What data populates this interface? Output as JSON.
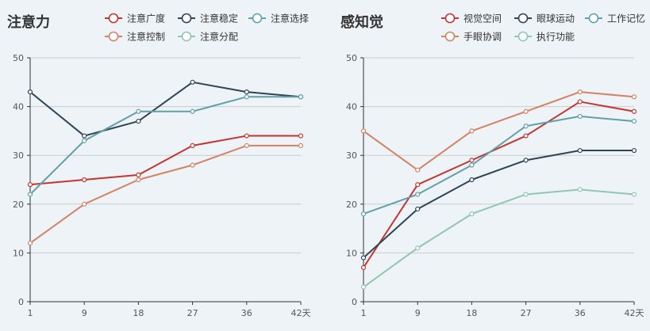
{
  "chart_data": [
    {
      "type": "line",
      "title": "注意力",
      "x_unit": "天",
      "categories": [
        "1",
        "9",
        "18",
        "27",
        "36",
        "42"
      ],
      "ylim": [
        0,
        50
      ],
      "yticks": [
        0,
        10,
        20,
        30,
        40,
        50
      ],
      "grid": true,
      "legend_position": "top-right",
      "series": [
        {
          "name": "注意广度",
          "color": "#c23531",
          "values": [
            24,
            25,
            26,
            32,
            34,
            34
          ]
        },
        {
          "name": "注意稳定",
          "color": "#2f4554",
          "values": [
            43,
            34,
            37,
            45,
            43,
            42
          ]
        },
        {
          "name": "注意选择",
          "color": "#61a0a8",
          "values": [
            22,
            33,
            39,
            39,
            42,
            42
          ]
        },
        {
          "name": "注意控制",
          "color": "#d48265",
          "values": [
            12,
            20,
            25,
            28,
            32,
            32
          ]
        },
        {
          "name": "注意分配",
          "color": "#91c7ae",
          "values": [
            null,
            null,
            null,
            null,
            null,
            null
          ]
        }
      ]
    },
    {
      "type": "line",
      "title": "感知觉",
      "x_unit": "天",
      "categories": [
        "1",
        "9",
        "18",
        "27",
        "36",
        "42"
      ],
      "ylim": [
        0,
        50
      ],
      "yticks": [
        0,
        10,
        20,
        30,
        40,
        50
      ],
      "grid": true,
      "legend_position": "top-right",
      "series": [
        {
          "name": "视觉空间",
          "color": "#c23531",
          "values": [
            7,
            24,
            29,
            34,
            41,
            39
          ]
        },
        {
          "name": "眼球运动",
          "color": "#2f4554",
          "values": [
            9,
            19,
            25,
            29,
            31,
            31
          ]
        },
        {
          "name": "工作记忆",
          "color": "#61a0a8",
          "values": [
            18,
            22,
            28,
            36,
            38,
            37
          ]
        },
        {
          "name": "手眼协调",
          "color": "#d48265",
          "values": [
            35,
            27,
            35,
            39,
            43,
            42
          ]
        },
        {
          "name": "执行功能",
          "color": "#91c7ae",
          "values": [
            3,
            11,
            18,
            22,
            23,
            22
          ]
        }
      ]
    }
  ]
}
